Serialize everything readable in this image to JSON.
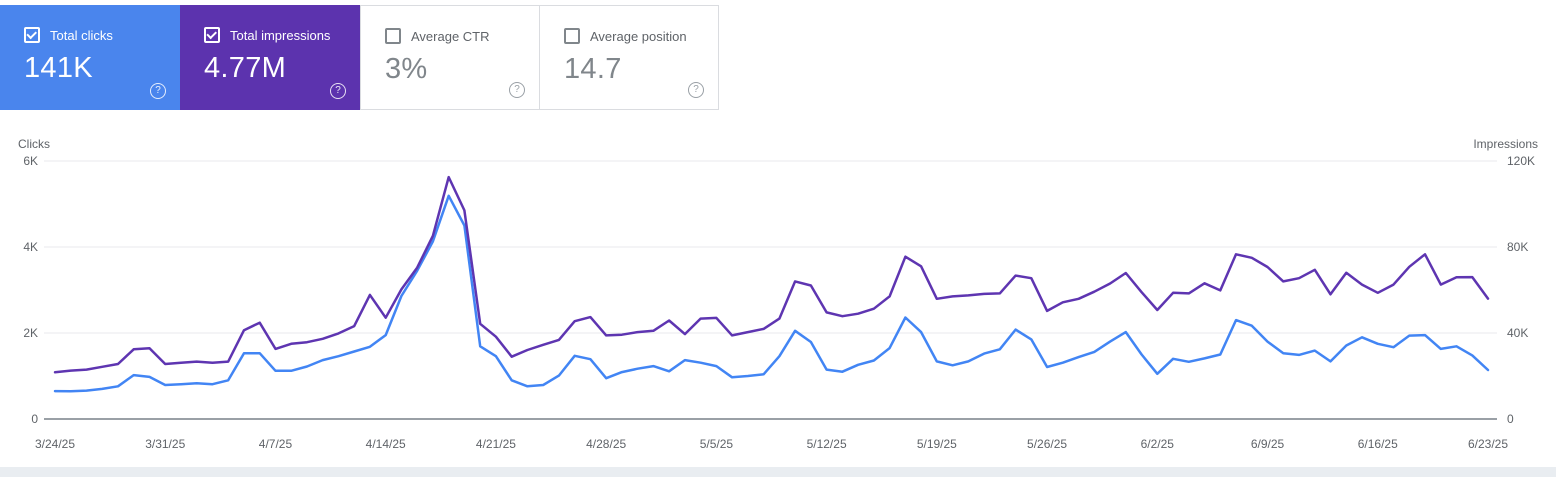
{
  "help_glyph": "?",
  "cards": [
    {
      "label": "Total clicks",
      "value": "141K",
      "selected": true,
      "color": "#4a85ed"
    },
    {
      "label": "Total impressions",
      "value": "4.77M",
      "selected": true,
      "color": "#5c33ae"
    },
    {
      "label": "Average CTR",
      "value": "3%",
      "selected": false,
      "color": "#ffffff"
    },
    {
      "label": "Average position",
      "value": "14.7",
      "selected": false,
      "color": "#ffffff"
    }
  ],
  "chart_data": {
    "type": "line",
    "grid": true,
    "legend_position": "none",
    "left_axis": {
      "title": "Clicks",
      "ticks": [
        "0",
        "2K",
        "4K",
        "6K"
      ],
      "min": 0,
      "max": 6000
    },
    "right_axis": {
      "title": "Impressions",
      "ticks": [
        "0",
        "40K",
        "80K",
        "120K"
      ],
      "min": 0,
      "max": 120000
    },
    "x_tick_labels": [
      "3/24/25",
      "3/31/25",
      "4/7/25",
      "4/14/25",
      "4/21/25",
      "4/28/25",
      "5/5/25",
      "5/12/25",
      "5/19/25",
      "5/26/25",
      "6/2/25",
      "6/9/25",
      "6/16/25",
      "6/23/25"
    ],
    "x": [
      "3/24/25",
      "3/25/25",
      "3/26/25",
      "3/27/25",
      "3/28/25",
      "3/29/25",
      "3/30/25",
      "3/31/25",
      "4/1/25",
      "4/2/25",
      "4/3/25",
      "4/4/25",
      "4/5/25",
      "4/6/25",
      "4/7/25",
      "4/8/25",
      "4/9/25",
      "4/10/25",
      "4/11/25",
      "4/12/25",
      "4/13/25",
      "4/14/25",
      "4/15/25",
      "4/16/25",
      "4/17/25",
      "4/18/25",
      "4/19/25",
      "4/20/25",
      "4/21/25",
      "4/22/25",
      "4/23/25",
      "4/24/25",
      "4/25/25",
      "4/26/25",
      "4/27/25",
      "4/28/25",
      "4/29/25",
      "4/30/25",
      "5/1/25",
      "5/2/25",
      "5/3/25",
      "5/4/25",
      "5/5/25",
      "5/6/25",
      "5/7/25",
      "5/8/25",
      "5/9/25",
      "5/10/25",
      "5/11/25",
      "5/12/25",
      "5/13/25",
      "5/14/25",
      "5/15/25",
      "5/16/25",
      "5/17/25",
      "5/18/25",
      "5/19/25",
      "5/20/25",
      "5/21/25",
      "5/22/25",
      "5/23/25",
      "5/24/25",
      "5/25/25",
      "5/26/25",
      "5/27/25",
      "5/28/25",
      "5/29/25",
      "5/30/25",
      "5/31/25",
      "6/1/25",
      "6/2/25",
      "6/3/25",
      "6/4/25",
      "6/5/25",
      "6/6/25",
      "6/7/25",
      "6/8/25",
      "6/9/25",
      "6/10/25",
      "6/11/25",
      "6/12/25",
      "6/13/25",
      "6/14/25",
      "6/15/25",
      "6/16/25",
      "6/17/25",
      "6/18/25",
      "6/19/25",
      "6/20/25",
      "6/21/25",
      "6/22/25",
      "6/23/25"
    ],
    "series": [
      {
        "name": "Clicks",
        "axis": "left",
        "color": "#4285f4",
        "values": [
          650,
          645,
          660,
          700,
          760,
          1020,
          980,
          790,
          810,
          830,
          810,
          900,
          1530,
          1530,
          1120,
          1120,
          1220,
          1370,
          1460,
          1570,
          1680,
          1950,
          2860,
          3450,
          4130,
          5190,
          4500,
          1690,
          1460,
          900,
          760,
          790,
          1010,
          1470,
          1390,
          950,
          1090,
          1170,
          1230,
          1110,
          1370,
          1310,
          1230,
          970,
          1000,
          1040,
          1460,
          2050,
          1790,
          1150,
          1100,
          1260,
          1360,
          1650,
          2360,
          2020,
          1340,
          1250,
          1340,
          1520,
          1620,
          2080,
          1850,
          1210,
          1310,
          1440,
          1560,
          1800,
          2020,
          1500,
          1050,
          1400,
          1330,
          1410,
          1500,
          2300,
          2170,
          1800,
          1530,
          1490,
          1590,
          1340,
          1710,
          1900,
          1750,
          1670,
          1940,
          1950,
          1630,
          1690,
          1480,
          1140
        ]
      },
      {
        "name": "Impressions",
        "axis": "right",
        "color": "#5e35b1",
        "values": [
          21700,
          22500,
          23000,
          24300,
          25600,
          32400,
          32900,
          25600,
          26200,
          26700,
          26200,
          26700,
          41300,
          44800,
          32600,
          35000,
          35700,
          37300,
          39800,
          43200,
          57700,
          47100,
          60300,
          70400,
          85200,
          112500,
          97000,
          44300,
          38300,
          29000,
          32100,
          34500,
          36800,
          45500,
          47400,
          38900,
          39200,
          40400,
          41000,
          45800,
          39500,
          46700,
          47000,
          38900,
          40400,
          41900,
          46700,
          64000,
          62100,
          49600,
          47800,
          49000,
          51300,
          57000,
          75500,
          71000,
          55900,
          57000,
          57500,
          58200,
          58400,
          66700,
          65500,
          50300,
          54300,
          55900,
          59200,
          63000,
          67900,
          59000,
          50700,
          58700,
          58400,
          63100,
          59800,
          76600,
          75000,
          70700,
          64000,
          65500,
          69400,
          58000,
          68000,
          62500,
          58700,
          62500,
          70800,
          76600,
          62500,
          65900,
          66000,
          56000
        ]
      }
    ]
  }
}
